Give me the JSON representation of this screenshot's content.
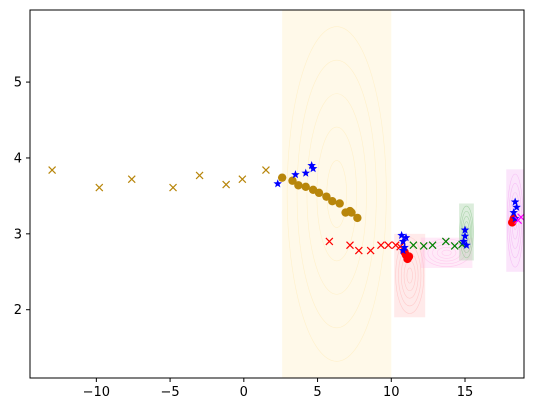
{
  "chart_data": {
    "type": "scatter",
    "title": "",
    "xlabel": "",
    "ylabel": "",
    "xlim": [
      -14.5,
      19
    ],
    "ylim": [
      1.1,
      5.95
    ],
    "xticks": [
      -10,
      -5,
      0,
      5,
      10,
      15
    ],
    "yticks": [
      2,
      3,
      4,
      5
    ],
    "grid": false,
    "legend": "none",
    "series": [
      {
        "marker": "x",
        "color": "#b8860b",
        "points": [
          [
            -13.0,
            3.84
          ],
          [
            -9.8,
            3.61
          ],
          [
            -7.6,
            3.72
          ],
          [
            -4.8,
            3.61
          ],
          [
            -3.0,
            3.77
          ],
          [
            -1.2,
            3.65
          ],
          [
            -0.1,
            3.72
          ],
          [
            1.5,
            3.84
          ]
        ]
      },
      {
        "marker": "o",
        "color": "#b8860b",
        "points": [
          [
            2.6,
            3.74
          ],
          [
            3.3,
            3.7
          ],
          [
            3.7,
            3.64
          ],
          [
            4.2,
            3.62
          ],
          [
            4.7,
            3.58
          ],
          [
            5.1,
            3.54
          ],
          [
            5.6,
            3.49
          ],
          [
            6.0,
            3.43
          ],
          [
            6.5,
            3.4
          ],
          [
            6.9,
            3.28
          ],
          [
            7.3,
            3.28
          ],
          [
            7.7,
            3.21
          ],
          [
            7.2,
            3.3
          ]
        ]
      },
      {
        "marker": "x",
        "color": "#ff0000",
        "points": [
          [
            5.8,
            2.9
          ],
          [
            7.2,
            2.85
          ],
          [
            7.8,
            2.78
          ],
          [
            8.6,
            2.78
          ],
          [
            9.3,
            2.85
          ],
          [
            9.8,
            2.85
          ],
          [
            10.3,
            2.85
          ],
          [
            10.6,
            2.83
          ]
        ]
      },
      {
        "marker": "o",
        "color": "#ff0000",
        "points": [
          [
            11.0,
            2.72
          ],
          [
            11.2,
            2.7
          ],
          [
            11.1,
            2.67
          ],
          [
            10.9,
            2.76
          ],
          [
            18.2,
            3.15
          ],
          [
            18.3,
            3.2
          ]
        ]
      },
      {
        "marker": "x",
        "color": "#008000",
        "points": [
          [
            11.5,
            2.85
          ],
          [
            12.2,
            2.84
          ],
          [
            12.8,
            2.85
          ],
          [
            13.7,
            2.9
          ],
          [
            14.3,
            2.84
          ],
          [
            14.8,
            2.86
          ]
        ]
      },
      {
        "marker": "*",
        "color": "#0000ff",
        "points": [
          [
            2.3,
            3.66
          ],
          [
            3.5,
            3.78
          ],
          [
            4.2,
            3.8
          ],
          [
            4.7,
            3.86
          ],
          [
            4.6,
            3.9
          ],
          [
            10.7,
            2.98
          ],
          [
            10.8,
            2.9
          ],
          [
            10.9,
            2.82
          ],
          [
            10.8,
            2.78
          ],
          [
            11.0,
            2.95
          ],
          [
            15.0,
            3.05
          ],
          [
            15.0,
            2.97
          ],
          [
            14.9,
            2.9
          ],
          [
            15.1,
            2.85
          ],
          [
            18.4,
            3.42
          ],
          [
            18.5,
            3.35
          ],
          [
            18.3,
            3.28
          ],
          [
            18.4,
            3.2
          ]
        ]
      },
      {
        "marker": "x",
        "color": "#ff00ff",
        "points": [
          [
            18.8,
            3.22
          ],
          [
            18.6,
            3.18
          ]
        ]
      }
    ],
    "density_regions": [
      {
        "color": "#ffe9b0",
        "x0": 2.6,
        "x1": 10.0,
        "y0": 1.1,
        "y1": 5.95
      },
      {
        "color": "#ffb3b3",
        "x0": 10.2,
        "x1": 12.3,
        "y0": 1.9,
        "y1": 3.0
      },
      {
        "color": "#ffb3e6",
        "x0": 12.0,
        "x1": 15.5,
        "y0": 2.55,
        "y1": 2.95
      },
      {
        "color": "#80c080",
        "x0": 14.6,
        "x1": 15.6,
        "y0": 2.65,
        "y1": 3.4
      },
      {
        "color": "#f0a0f0",
        "x0": 17.8,
        "x1": 19.0,
        "y0": 2.5,
        "y1": 3.85
      }
    ]
  }
}
